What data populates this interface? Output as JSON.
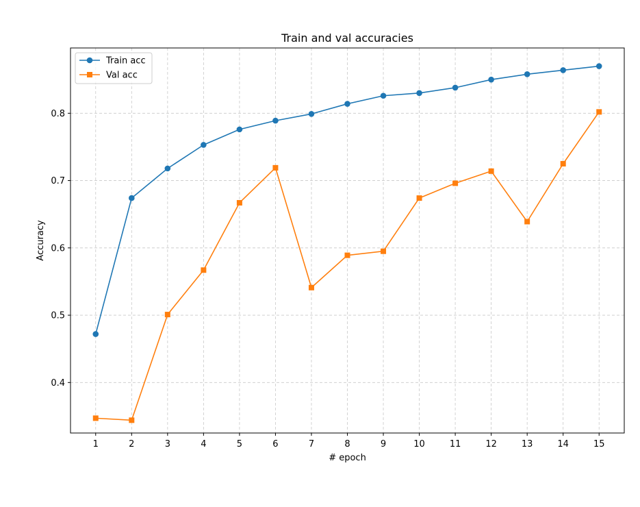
{
  "chart_data": {
    "type": "line",
    "title": "Train and val accuracies",
    "xlabel": "# epoch",
    "ylabel": "Accuracy",
    "x": [
      1,
      2,
      3,
      4,
      5,
      6,
      7,
      8,
      9,
      10,
      11,
      12,
      13,
      14,
      15
    ],
    "xlim": [
      0.3,
      15.7
    ],
    "ylim": [
      0.325,
      0.897
    ],
    "yticks": [
      0.4,
      0.5,
      0.6,
      0.7,
      0.8
    ],
    "ytick_labels": [
      "0.4",
      "0.5",
      "0.6",
      "0.7",
      "0.8"
    ],
    "grid": true,
    "legend_position": "top-left",
    "series": [
      {
        "name": "Train acc",
        "color": "#1f77b4",
        "marker": "circle",
        "values": [
          0.472,
          0.674,
          0.718,
          0.753,
          0.776,
          0.789,
          0.799,
          0.814,
          0.826,
          0.83,
          0.838,
          0.85,
          0.858,
          0.864,
          0.87
        ]
      },
      {
        "name": "Val acc",
        "color": "#ff7f0e",
        "marker": "square",
        "values": [
          0.347,
          0.344,
          0.501,
          0.567,
          0.667,
          0.719,
          0.541,
          0.589,
          0.595,
          0.674,
          0.696,
          0.714,
          0.639,
          0.725,
          0.802
        ]
      }
    ]
  }
}
